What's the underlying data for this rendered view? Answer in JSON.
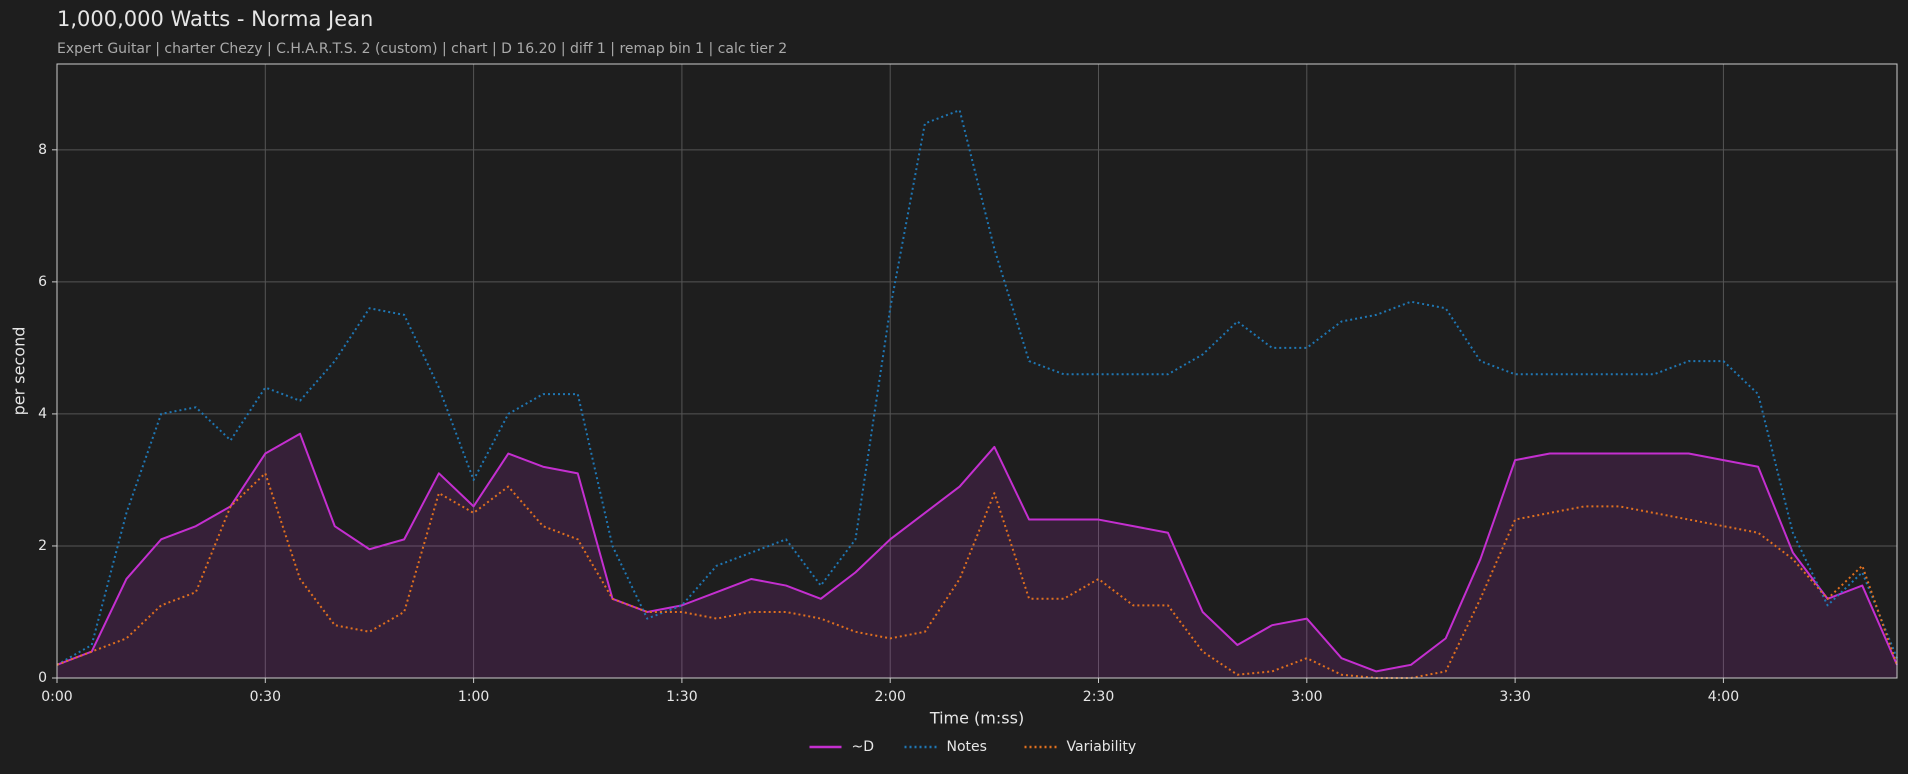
{
  "chart_data": {
    "type": "line",
    "title": "1,000,000 Watts - Norma Jean",
    "subtitle": "Expert Guitar  |  charter Chezy  |  C.H.A.R.T.S. 2 (custom)  |  chart  |  D 16.20  |  diff 1  |  remap bin 1  |  calc tier 2",
    "xlabel": "Time (m:ss)",
    "ylabel": "per second",
    "x": [
      0,
      5,
      10,
      15,
      20,
      25,
      30,
      35,
      40,
      45,
      50,
      55,
      60,
      65,
      70,
      75,
      80,
      85,
      90,
      95,
      100,
      105,
      110,
      115,
      120,
      125,
      130,
      135,
      140,
      145,
      150,
      155,
      160,
      165,
      170,
      175,
      180,
      185,
      190,
      195,
      200,
      205,
      210,
      215,
      220,
      225,
      230,
      235,
      240,
      245,
      250,
      255,
      260,
      265
    ],
    "series": [
      {
        "name": "~D",
        "color": "#c42fd0",
        "style": "solid",
        "fill": true,
        "values": [
          0.2,
          0.4,
          1.5,
          2.1,
          2.3,
          2.6,
          3.4,
          3.7,
          2.3,
          1.95,
          2.1,
          3.1,
          2.6,
          3.4,
          3.2,
          3.1,
          1.2,
          1.0,
          1.1,
          1.3,
          1.5,
          1.4,
          1.2,
          1.6,
          2.1,
          2.5,
          2.9,
          3.5,
          2.4,
          2.4,
          2.4,
          2.3,
          2.2,
          1.0,
          0.5,
          0.8,
          0.9,
          0.3,
          0.1,
          0.2,
          0.6,
          1.8,
          3.3,
          3.4,
          3.4,
          3.4,
          3.4,
          3.4,
          3.3,
          3.2,
          1.9,
          1.2,
          1.4,
          0.2
        ]
      },
      {
        "name": "Notes",
        "color": "#1f77b4",
        "style": "dotted",
        "fill": false,
        "values": [
          0.2,
          0.5,
          2.5,
          4.0,
          4.1,
          3.6,
          4.4,
          4.2,
          4.8,
          5.6,
          5.5,
          4.4,
          3.0,
          4.0,
          4.3,
          4.3,
          2.0,
          0.9,
          1.1,
          1.7,
          1.9,
          2.1,
          1.4,
          2.1,
          5.6,
          8.4,
          8.6,
          6.5,
          4.8,
          4.6,
          4.6,
          4.6,
          4.6,
          4.9,
          5.4,
          5.0,
          5.0,
          5.4,
          5.5,
          5.7,
          5.6,
          4.8,
          4.6,
          4.6,
          4.6,
          4.6,
          4.6,
          4.8,
          4.8,
          4.3,
          2.2,
          1.1,
          1.6,
          0.3
        ]
      },
      {
        "name": "Variability",
        "color": "#e0701f",
        "style": "dotted",
        "fill": false,
        "values": [
          0.2,
          0.4,
          0.6,
          1.1,
          1.3,
          2.6,
          3.1,
          1.5,
          0.8,
          0.7,
          1.0,
          2.8,
          2.5,
          2.9,
          2.3,
          2.1,
          1.2,
          1.0,
          1.0,
          0.9,
          1.0,
          1.0,
          0.9,
          0.7,
          0.6,
          0.7,
          1.5,
          2.8,
          1.2,
          1.2,
          1.5,
          1.1,
          1.1,
          0.4,
          0.05,
          0.1,
          0.3,
          0.05,
          0,
          0,
          0.1,
          1.2,
          2.4,
          2.5,
          2.6,
          2.6,
          2.5,
          2.4,
          2.3,
          2.2,
          1.8,
          1.2,
          1.7,
          0.2
        ]
      }
    ],
    "xlim": [
      0,
      265
    ],
    "ylim": [
      0,
      9.3
    ],
    "xticks": [
      {
        "value": 0,
        "label": "0:00"
      },
      {
        "value": 30,
        "label": "0:30"
      },
      {
        "value": 60,
        "label": "1:00"
      },
      {
        "value": 90,
        "label": "1:30"
      },
      {
        "value": 120,
        "label": "2:00"
      },
      {
        "value": 150,
        "label": "2:30"
      },
      {
        "value": 180,
        "label": "3:00"
      },
      {
        "value": 210,
        "label": "3:30"
      },
      {
        "value": 240,
        "label": "4:00"
      }
    ],
    "yticks": [
      0,
      2,
      4,
      6,
      8
    ],
    "grid": true,
    "legend": "bottom"
  }
}
